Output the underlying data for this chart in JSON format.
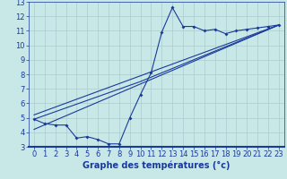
{
  "background_color": "#c8e8e8",
  "grid_color": "#aacccc",
  "line_color": "#1a3a9a",
  "xlabel": "Graphe des températures (°c)",
  "xlim": [
    -0.5,
    23.5
  ],
  "ylim": [
    3,
    13
  ],
  "yticks": [
    3,
    4,
    5,
    6,
    7,
    8,
    9,
    10,
    11,
    12,
    13
  ],
  "xticks": [
    0,
    1,
    2,
    3,
    4,
    5,
    6,
    7,
    8,
    9,
    10,
    11,
    12,
    13,
    14,
    15,
    16,
    17,
    18,
    19,
    20,
    21,
    22,
    23
  ],
  "series1_x": [
    0,
    1,
    2,
    3,
    4,
    5,
    6,
    7,
    8,
    9,
    10,
    11,
    12,
    13,
    14,
    15,
    16,
    17,
    18,
    19,
    20,
    21,
    22,
    23
  ],
  "series1_y": [
    4.9,
    4.6,
    4.5,
    4.5,
    3.6,
    3.7,
    3.5,
    3.2,
    3.2,
    5.0,
    6.6,
    8.1,
    10.9,
    12.6,
    11.3,
    11.3,
    11.0,
    11.1,
    10.8,
    11.0,
    11.1,
    11.2,
    11.3,
    11.4
  ],
  "series2_x": [
    0,
    10,
    23
  ],
  "series2_y": [
    4.9,
    7.5,
    11.4
  ],
  "series3_x": [
    0,
    23
  ],
  "series3_y": [
    5.2,
    11.4
  ],
  "series4_x": [
    0,
    23
  ],
  "series4_y": [
    4.2,
    11.4
  ],
  "xlabel_fontsize": 7,
  "tick_fontsize": 6
}
